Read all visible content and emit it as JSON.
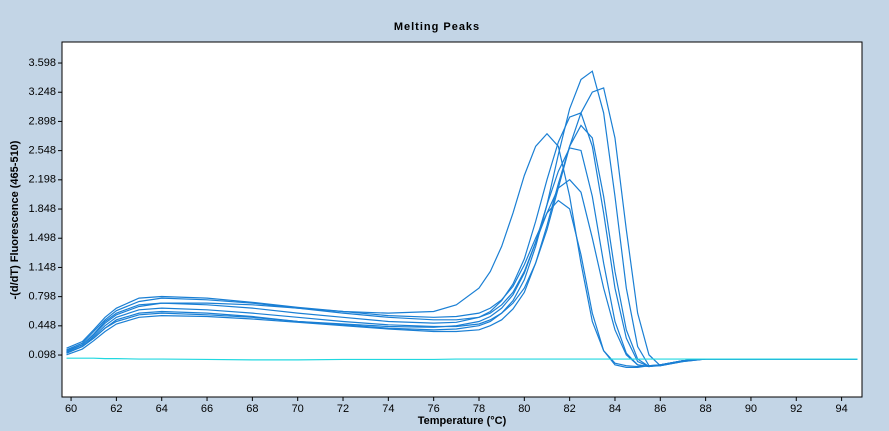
{
  "chart_data": {
    "type": "line",
    "title": "Melting Peaks",
    "x_label": "Temperature (°C)",
    "y_label": "-(d/dT) Fluorescence (465-510)",
    "x": [
      59.8,
      60.5,
      61,
      61.5,
      62,
      63,
      64,
      66,
      68,
      70,
      72,
      74,
      76,
      77,
      78,
      78.5,
      79,
      79.5,
      80,
      80.5,
      81,
      81.5,
      82,
      82.5,
      83,
      83.5,
      84,
      84.5,
      85,
      85.5,
      86,
      87,
      88,
      90,
      92,
      94.7
    ],
    "xlim": [
      59.6,
      94.9
    ],
    "xticks": [
      60,
      62,
      64,
      66,
      68,
      70,
      72,
      74,
      76,
      78,
      80,
      82,
      84,
      86,
      88,
      90,
      92,
      94
    ],
    "ylim": [
      -0.405,
      3.85
    ],
    "yticks": [
      0.098,
      0.448,
      0.798,
      1.148,
      1.498,
      1.848,
      2.198,
      2.548,
      2.898,
      3.248,
      3.598
    ],
    "grid": false,
    "series": [
      {
        "color": "#1a7fd4",
        "values": [
          0.15,
          0.22,
          0.35,
          0.5,
          0.6,
          0.7,
          0.72,
          0.7,
          0.66,
          0.6,
          0.55,
          0.5,
          0.48,
          0.49,
          0.55,
          0.62,
          0.75,
          0.95,
          1.25,
          1.7,
          2.2,
          2.65,
          2.95,
          3.0,
          2.6,
          1.8,
          0.9,
          0.3,
          0.02,
          -0.04,
          -0.02,
          0.03,
          0.05,
          0.05,
          0.05,
          0.05
        ]
      },
      {
        "color": "#1a7fd4",
        "values": [
          0.12,
          0.2,
          0.3,
          0.42,
          0.52,
          0.6,
          0.62,
          0.6,
          0.56,
          0.5,
          0.46,
          0.42,
          0.4,
          0.41,
          0.45,
          0.5,
          0.6,
          0.75,
          1.0,
          1.4,
          1.9,
          2.5,
          3.05,
          3.4,
          3.5,
          3.0,
          2.0,
          0.9,
          0.2,
          -0.03,
          -0.03,
          0.03,
          0.05,
          0.05,
          0.05,
          0.05
        ]
      },
      {
        "color": "#1a7fd4",
        "values": [
          0.14,
          0.22,
          0.34,
          0.48,
          0.58,
          0.68,
          0.72,
          0.72,
          0.7,
          0.66,
          0.62,
          0.6,
          0.62,
          0.7,
          0.9,
          1.1,
          1.4,
          1.8,
          2.25,
          2.6,
          2.75,
          2.6,
          2.0,
          1.2,
          0.5,
          0.15,
          0.0,
          -0.03,
          -0.04,
          -0.03,
          -0.02,
          0.03,
          0.05,
          0.05,
          0.05,
          0.05
        ]
      },
      {
        "color": "#1a7fd4",
        "values": [
          0.13,
          0.2,
          0.32,
          0.45,
          0.55,
          0.64,
          0.66,
          0.64,
          0.6,
          0.55,
          0.5,
          0.46,
          0.44,
          0.44,
          0.47,
          0.52,
          0.6,
          0.72,
          0.9,
          1.2,
          1.6,
          2.1,
          2.6,
          3.0,
          3.25,
          3.3,
          2.7,
          1.6,
          0.6,
          0.1,
          -0.03,
          0.02,
          0.05,
          0.05,
          0.05,
          0.05
        ]
      },
      {
        "color": "#1a7fd4",
        "values": [
          0.16,
          0.24,
          0.38,
          0.52,
          0.63,
          0.74,
          0.78,
          0.76,
          0.72,
          0.66,
          0.6,
          0.55,
          0.52,
          0.52,
          0.55,
          0.6,
          0.7,
          0.85,
          1.1,
          1.45,
          1.8,
          2.1,
          2.2,
          2.05,
          1.5,
          0.9,
          0.4,
          0.1,
          -0.02,
          -0.04,
          -0.02,
          0.03,
          0.05,
          0.05,
          0.05,
          0.05
        ]
      },
      {
        "color": "#1a7fd4",
        "values": [
          0.12,
          0.2,
          0.3,
          0.42,
          0.5,
          0.58,
          0.6,
          0.58,
          0.55,
          0.5,
          0.47,
          0.44,
          0.43,
          0.45,
          0.5,
          0.56,
          0.66,
          0.82,
          1.08,
          1.45,
          1.9,
          2.3,
          2.58,
          2.55,
          2.0,
          1.2,
          0.5,
          0.12,
          -0.02,
          -0.04,
          -0.02,
          0.03,
          0.05,
          0.05,
          0.05,
          0.05
        ]
      },
      {
        "color": "#1a7fd4",
        "values": [
          0.1,
          0.17,
          0.27,
          0.38,
          0.47,
          0.55,
          0.57,
          0.56,
          0.53,
          0.49,
          0.45,
          0.41,
          0.38,
          0.38,
          0.4,
          0.45,
          0.52,
          0.65,
          0.85,
          1.2,
          1.65,
          2.15,
          2.6,
          2.85,
          2.7,
          2.0,
          1.1,
          0.4,
          0.05,
          -0.04,
          -0.03,
          0.02,
          0.05,
          0.05,
          0.05,
          0.05
        ]
      },
      {
        "color": "#1a7fd4",
        "values": [
          0.18,
          0.26,
          0.4,
          0.55,
          0.66,
          0.78,
          0.8,
          0.78,
          0.73,
          0.67,
          0.62,
          0.57,
          0.55,
          0.56,
          0.6,
          0.66,
          0.76,
          0.92,
          1.18,
          1.5,
          1.8,
          1.95,
          1.85,
          1.3,
          0.6,
          0.15,
          -0.02,
          -0.05,
          -0.05,
          -0.03,
          -0.02,
          0.03,
          0.05,
          0.05,
          0.05,
          0.05
        ]
      },
      {
        "color": "#20d8e0",
        "values": [
          0.06,
          0.06,
          0.06,
          0.055,
          0.055,
          0.05,
          0.05,
          0.045,
          0.04,
          0.04,
          0.045,
          0.045,
          0.045,
          0.05,
          0.05,
          0.05,
          0.05,
          0.05,
          0.05,
          0.05,
          0.05,
          0.05,
          0.05,
          0.05,
          0.05,
          0.05,
          0.05,
          0.05,
          0.05,
          0.05,
          0.05,
          0.05,
          0.05,
          0.05,
          0.05,
          0.05
        ]
      }
    ]
  }
}
